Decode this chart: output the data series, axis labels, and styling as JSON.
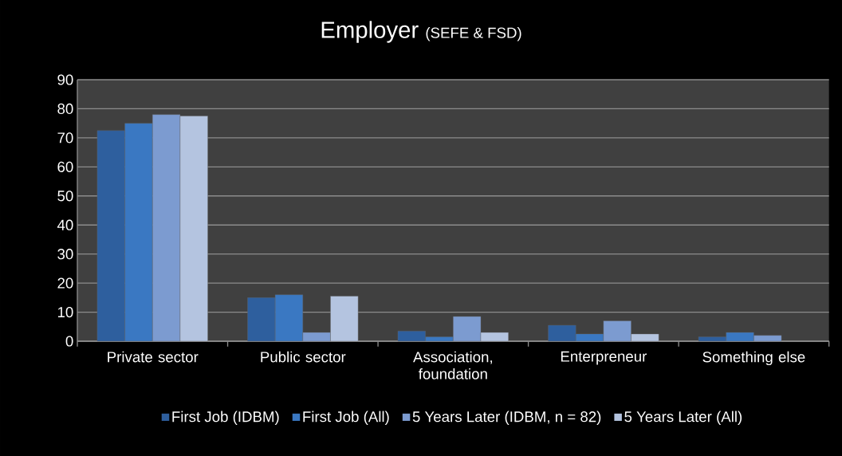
{
  "chart_data": {
    "type": "bar",
    "title": "Employer",
    "subtitle": "(SEFE & FSD)",
    "categories": [
      "Private sector",
      "Public sector",
      "Association, foundation",
      "Enterpreneur",
      "Something else"
    ],
    "series": [
      {
        "name": "First Job (IDBM)",
        "color": "#2e5f9e",
        "values": [
          72.5,
          15,
          3.5,
          5.5,
          1.5
        ]
      },
      {
        "name": "First Job (All)",
        "color": "#3a78c2",
        "values": [
          75,
          16,
          1.5,
          2.5,
          3
        ]
      },
      {
        "name": "5 Years Later (IDBM, n = 82)",
        "color": "#7c9bd0",
        "values": [
          78,
          3,
          8.5,
          7,
          2
        ]
      },
      {
        "name": "5 Years Later (All)",
        "color": "#b4c4e0",
        "values": [
          77.5,
          15.5,
          3,
          2.5,
          null
        ]
      }
    ],
    "ylim": [
      0,
      90
    ],
    "yticks": [
      0,
      10,
      20,
      30,
      40,
      50,
      60,
      70,
      80,
      90
    ],
    "grid": "y",
    "legend": "bottom"
  }
}
